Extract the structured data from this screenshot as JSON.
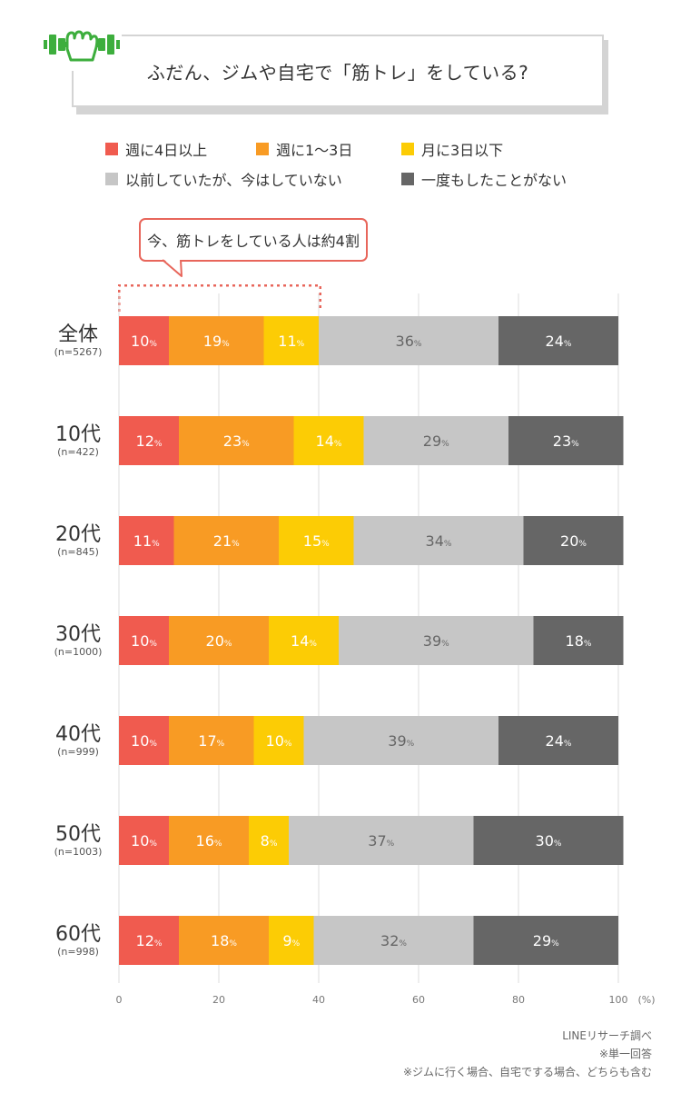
{
  "title": "ふだん、ジムや自宅で「筋トレ」をしている?",
  "callout": "今、筋トレをしている人は約4割",
  "icon": "dumbbell-hand-icon",
  "colors": {
    "accent": "#3dae3d",
    "callout_border": "#e8665b"
  },
  "chart_data": {
    "type": "bar",
    "orientation": "horizontal",
    "stacked": true,
    "percent_stacked": true,
    "categories": [
      "全体",
      "10代",
      "20代",
      "30代",
      "40代",
      "50代",
      "60代"
    ],
    "category_n": [
      "(n=5267)",
      "(n=422)",
      "(n=845)",
      "(n=1000)",
      "(n=999)",
      "(n=1003)",
      "(n=998)"
    ],
    "series": [
      {
        "name": "週に4日以上",
        "color": "#f05b4f",
        "values": [
          10,
          12,
          11,
          10,
          10,
          10,
          12
        ]
      },
      {
        "name": "週に1〜3日",
        "color": "#f89b24",
        "values": [
          19,
          23,
          21,
          20,
          17,
          16,
          18
        ]
      },
      {
        "name": "月に3日以下",
        "color": "#fccc05",
        "values": [
          11,
          14,
          15,
          14,
          10,
          8,
          9
        ]
      },
      {
        "name": "以前していたが、今はしていない",
        "color": "#c6c6c6",
        "values": [
          36,
          29,
          34,
          39,
          39,
          37,
          32
        ]
      },
      {
        "name": "一度もしたことがない",
        "color": "#666666",
        "values": [
          24,
          23,
          20,
          18,
          24,
          30,
          29
        ]
      }
    ],
    "xticks": [
      "0",
      "20",
      "40",
      "60",
      "80",
      "100"
    ],
    "xlim": [
      0,
      100
    ],
    "unit_label": "(%)",
    "value_suffix": "%",
    "grid": true,
    "legend_position": "top"
  },
  "footnotes": [
    "LINEリサーチ調べ",
    "※単一回答",
    "※ジムに行く場合、自宅でする場合、どちらも含む"
  ]
}
